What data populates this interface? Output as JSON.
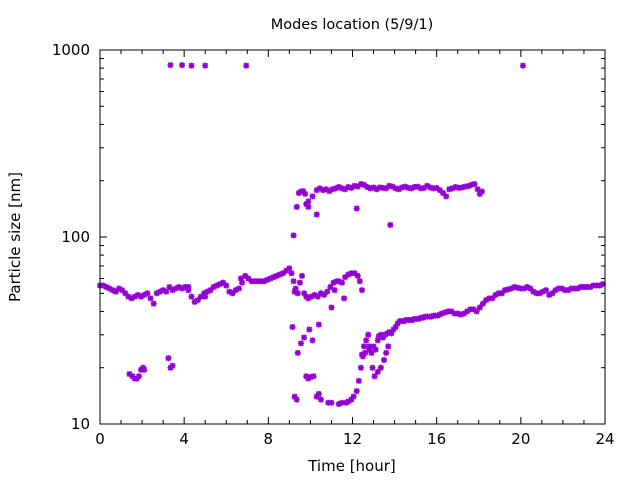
{
  "chart_data": {
    "type": "scatter",
    "title": "Modes location (5/9/1)",
    "xlabel": "Time [hour]",
    "ylabel": "Particle size [nm]",
    "xlim": [
      0,
      24
    ],
    "ylim": [
      10,
      1000
    ],
    "yscale": "log",
    "grid": false,
    "legend": "none",
    "x_ticks": [
      0,
      4,
      8,
      12,
      16,
      20,
      24
    ],
    "x_tick_labels": [
      "0",
      "4",
      "8",
      "12",
      "16",
      "20",
      "24"
    ],
    "y_ticks": [
      10,
      100,
      1000
    ],
    "y_tick_labels": [
      "10",
      "100",
      "1000"
    ],
    "marker_color": "#9400d3",
    "series": [
      {
        "points": [
          [
            0.0,
            55
          ],
          [
            0.15,
            55
          ],
          [
            0.3,
            54
          ],
          [
            0.45,
            53
          ],
          [
            0.6,
            52
          ],
          [
            0.75,
            51
          ],
          [
            0.9,
            53
          ],
          [
            1.05,
            52
          ],
          [
            1.2,
            50
          ],
          [
            1.35,
            48
          ],
          [
            1.5,
            47
          ],
          [
            1.65,
            48
          ],
          [
            1.8,
            49
          ],
          [
            1.95,
            48
          ],
          [
            2.1,
            49
          ],
          [
            2.25,
            50
          ],
          [
            2.4,
            47
          ],
          [
            2.55,
            44
          ],
          [
            2.7,
            50
          ],
          [
            2.85,
            51
          ],
          [
            3.0,
            52
          ],
          [
            3.15,
            51
          ],
          [
            3.3,
            54
          ],
          [
            3.45,
            52
          ],
          [
            3.6,
            53
          ],
          [
            3.75,
            54
          ],
          [
            3.9,
            53
          ],
          [
            4.05,
            54
          ],
          [
            4.2,
            52
          ],
          [
            4.35,
            48
          ],
          [
            4.5,
            45
          ],
          [
            4.65,
            46
          ],
          [
            4.8,
            48
          ],
          [
            4.95,
            50
          ],
          [
            5.1,
            51
          ],
          [
            5.25,
            52
          ],
          [
            5.4,
            54
          ],
          [
            5.55,
            55
          ],
          [
            5.7,
            56
          ],
          [
            5.85,
            57
          ],
          [
            6.0,
            55
          ],
          [
            6.15,
            51
          ],
          [
            6.3,
            50
          ],
          [
            6.45,
            52
          ],
          [
            6.6,
            53
          ],
          [
            6.75,
            57
          ],
          [
            6.9,
            62
          ],
          [
            7.05,
            60
          ],
          [
            7.2,
            58
          ],
          [
            7.35,
            58
          ],
          [
            7.5,
            58
          ],
          [
            7.65,
            58
          ],
          [
            7.8,
            58
          ],
          [
            7.95,
            59
          ],
          [
            8.1,
            60
          ],
          [
            8.25,
            61
          ],
          [
            8.4,
            62
          ],
          [
            8.55,
            63
          ],
          [
            8.7,
            64
          ],
          [
            8.85,
            66
          ],
          [
            9.0,
            68
          ],
          [
            9.1,
            64
          ],
          [
            9.2,
            58
          ],
          [
            9.3,
            53
          ],
          [
            9.4,
            50
          ],
          [
            9.5,
            57
          ],
          [
            9.6,
            62
          ],
          [
            9.7,
            50
          ],
          [
            9.8,
            48
          ],
          [
            9.9,
            47
          ],
          [
            10.05,
            48
          ],
          [
            10.2,
            49
          ],
          [
            10.35,
            48
          ],
          [
            10.5,
            50
          ],
          [
            10.65,
            49
          ],
          [
            10.8,
            51
          ],
          [
            10.95,
            54
          ],
          [
            11.1,
            57
          ],
          [
            11.25,
            58
          ],
          [
            4.2,
            54
          ],
          [
            5.0,
            48
          ],
          [
            6.7,
            60
          ],
          [
            9.25,
            51
          ],
          [
            1.4,
            18.5
          ],
          [
            1.55,
            18
          ],
          [
            1.65,
            17.5
          ],
          [
            1.75,
            17.5
          ],
          [
            1.85,
            18
          ],
          [
            1.95,
            19.5
          ],
          [
            2.05,
            20
          ],
          [
            2.1,
            19.5
          ],
          [
            3.25,
            22.5
          ],
          [
            3.35,
            20
          ],
          [
            3.45,
            20.5
          ],
          [
            9.2,
            102
          ],
          [
            9.35,
            145
          ],
          [
            9.45,
            172
          ],
          [
            9.55,
            175
          ],
          [
            9.65,
            176
          ],
          [
            9.75,
            170
          ],
          [
            9.9,
            155
          ],
          [
            10.1,
            165
          ],
          [
            10.3,
            178
          ],
          [
            10.45,
            182
          ],
          [
            10.6,
            178
          ],
          [
            10.75,
            180
          ],
          [
            10.9,
            176
          ],
          [
            11.05,
            180
          ],
          [
            11.2,
            182
          ],
          [
            11.35,
            185
          ],
          [
            11.5,
            182
          ],
          [
            11.65,
            180
          ],
          [
            11.8,
            185
          ],
          [
            11.95,
            183
          ],
          [
            12.1,
            188
          ],
          [
            12.25,
            186
          ],
          [
            12.4,
            192
          ],
          [
            12.55,
            190
          ],
          [
            12.7,
            185
          ],
          [
            12.85,
            182
          ],
          [
            13.0,
            184
          ],
          [
            13.15,
            180
          ],
          [
            13.3,
            184
          ],
          [
            13.45,
            183
          ],
          [
            13.6,
            182
          ],
          [
            13.75,
            188
          ],
          [
            13.9,
            186
          ],
          [
            14.05,
            182
          ],
          [
            14.2,
            180
          ],
          [
            14.35,
            184
          ],
          [
            14.5,
            186
          ],
          [
            14.65,
            183
          ],
          [
            14.8,
            182
          ],
          [
            14.95,
            185
          ],
          [
            15.1,
            186
          ],
          [
            15.25,
            182
          ],
          [
            15.4,
            183
          ],
          [
            15.55,
            188
          ],
          [
            15.7,
            184
          ],
          [
            15.85,
            182
          ],
          [
            16.0,
            183
          ],
          [
            16.15,
            178
          ],
          [
            16.3,
            172
          ],
          [
            16.45,
            165
          ],
          [
            16.6,
            180
          ],
          [
            16.75,
            182
          ],
          [
            16.9,
            185
          ],
          [
            17.05,
            183
          ],
          [
            17.2,
            184
          ],
          [
            17.35,
            186
          ],
          [
            17.5,
            187
          ],
          [
            17.65,
            190
          ],
          [
            17.8,
            192
          ],
          [
            17.95,
            180
          ],
          [
            18.05,
            170
          ],
          [
            18.15,
            175
          ],
          [
            9.8,
            150
          ],
          [
            9.9,
            145
          ],
          [
            10.3,
            132
          ],
          [
            12.2,
            142
          ],
          [
            13.8,
            116
          ],
          [
            3.35,
            830
          ],
          [
            3.9,
            830
          ],
          [
            4.35,
            825
          ],
          [
            5.0,
            825
          ],
          [
            6.95,
            825
          ],
          [
            20.1,
            825
          ],
          [
            9.15,
            33
          ],
          [
            9.4,
            24
          ],
          [
            9.55,
            27
          ],
          [
            9.7,
            29
          ],
          [
            9.95,
            32
          ],
          [
            10.1,
            28
          ],
          [
            10.4,
            34
          ],
          [
            9.25,
            14
          ],
          [
            9.35,
            13.5
          ],
          [
            9.8,
            18
          ],
          [
            9.9,
            17.5
          ],
          [
            10.0,
            17.8
          ],
          [
            10.15,
            18
          ],
          [
            10.3,
            14
          ],
          [
            10.4,
            14.5
          ],
          [
            10.5,
            13.5
          ],
          [
            10.85,
            13
          ],
          [
            11.0,
            13
          ],
          [
            11.35,
            12.8
          ],
          [
            11.5,
            13
          ],
          [
            11.7,
            13
          ],
          [
            11.8,
            13.2
          ],
          [
            11.95,
            13.5
          ],
          [
            12.05,
            14
          ],
          [
            12.2,
            15
          ],
          [
            12.3,
            17
          ],
          [
            12.4,
            20
          ],
          [
            12.5,
            23
          ],
          [
            12.55,
            26
          ],
          [
            12.65,
            28
          ],
          [
            12.75,
            30
          ],
          [
            12.8,
            26
          ],
          [
            12.95,
            20
          ],
          [
            13.05,
            18
          ],
          [
            13.2,
            19
          ],
          [
            13.35,
            20
          ],
          [
            13.5,
            22
          ],
          [
            13.6,
            24
          ],
          [
            13.7,
            26
          ],
          [
            11.0,
            42
          ],
          [
            11.15,
            52
          ],
          [
            11.35,
            58
          ],
          [
            11.5,
            57
          ],
          [
            11.65,
            61
          ],
          [
            11.8,
            63
          ],
          [
            11.95,
            64
          ],
          [
            12.1,
            64
          ],
          [
            12.25,
            62
          ],
          [
            12.35,
            58
          ],
          [
            12.45,
            52
          ],
          [
            11.6,
            47
          ],
          [
            12.45,
            23.5
          ],
          [
            12.6,
            24
          ],
          [
            12.8,
            25
          ],
          [
            12.9,
            24
          ],
          [
            13.0,
            26
          ],
          [
            13.1,
            25
          ],
          [
            13.2,
            28
          ],
          [
            13.25,
            29.5
          ],
          [
            13.35,
            30
          ],
          [
            13.45,
            29
          ],
          [
            13.55,
            30
          ],
          [
            13.65,
            30.5
          ],
          [
            13.75,
            31
          ],
          [
            13.85,
            30.5
          ],
          [
            13.95,
            32
          ],
          [
            14.05,
            33
          ],
          [
            14.15,
            34.5
          ],
          [
            14.25,
            35.5
          ],
          [
            14.35,
            35.5
          ],
          [
            14.45,
            35.5
          ],
          [
            14.55,
            36
          ],
          [
            14.65,
            36
          ],
          [
            14.75,
            36
          ],
          [
            14.85,
            36
          ],
          [
            14.95,
            36.5
          ],
          [
            15.05,
            36.5
          ],
          [
            15.15,
            36.5
          ],
          [
            15.25,
            37
          ],
          [
            15.35,
            37
          ],
          [
            15.45,
            37.5
          ],
          [
            15.55,
            37.5
          ],
          [
            15.65,
            37.5
          ],
          [
            15.75,
            37.5
          ],
          [
            15.85,
            38
          ],
          [
            15.95,
            38
          ],
          [
            16.05,
            38
          ],
          [
            16.15,
            38.5
          ],
          [
            16.25,
            39
          ],
          [
            16.4,
            39.5
          ],
          [
            16.55,
            40
          ],
          [
            16.7,
            40
          ],
          [
            16.85,
            39
          ],
          [
            17.0,
            39
          ],
          [
            17.15,
            38.5
          ],
          [
            17.3,
            39
          ],
          [
            17.45,
            40
          ],
          [
            17.6,
            41
          ],
          [
            17.75,
            41
          ],
          [
            17.9,
            40
          ],
          [
            18.05,
            42
          ],
          [
            18.2,
            44
          ],
          [
            18.35,
            46
          ],
          [
            18.5,
            47
          ],
          [
            18.65,
            47
          ],
          [
            18.8,
            49
          ],
          [
            18.95,
            50
          ],
          [
            19.1,
            50
          ],
          [
            19.25,
            52
          ],
          [
            19.4,
            52.5
          ],
          [
            19.55,
            53
          ],
          [
            19.7,
            54
          ],
          [
            19.85,
            53.5
          ],
          [
            20.0,
            53
          ],
          [
            20.15,
            53
          ],
          [
            20.3,
            54
          ],
          [
            20.45,
            53
          ],
          [
            20.6,
            51
          ],
          [
            20.75,
            50
          ],
          [
            20.9,
            50
          ],
          [
            21.05,
            51
          ],
          [
            21.2,
            52
          ],
          [
            21.35,
            49
          ],
          [
            21.5,
            50
          ],
          [
            21.65,
            52
          ],
          [
            21.8,
            53
          ],
          [
            21.95,
            53
          ],
          [
            22.1,
            52
          ],
          [
            22.25,
            52
          ],
          [
            22.4,
            53
          ],
          [
            22.55,
            53
          ],
          [
            22.7,
            53
          ],
          [
            22.85,
            54
          ],
          [
            23.0,
            54
          ],
          [
            23.15,
            54
          ],
          [
            23.3,
            54
          ],
          [
            23.45,
            55
          ],
          [
            23.6,
            55
          ],
          [
            23.75,
            55
          ],
          [
            23.9,
            56
          ]
        ]
      }
    ]
  }
}
